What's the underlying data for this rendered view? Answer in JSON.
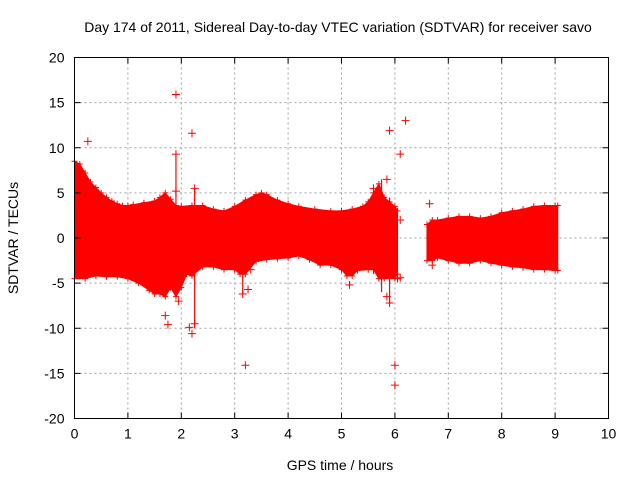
{
  "chart_data": {
    "type": "scatter",
    "title": "Day 174 of 2011, Sidereal Day-to-day VTEC variation (SDTVAR) for receiver savo",
    "xlabel": "GPS time / hours",
    "ylabel": "SDTVAR / TECUs",
    "xlim": [
      0,
      10
    ],
    "ylim": [
      -20,
      20
    ],
    "xticks": [
      0,
      1,
      2,
      3,
      4,
      5,
      6,
      7,
      8,
      9,
      10
    ],
    "yticks": [
      -20,
      -15,
      -10,
      -5,
      0,
      5,
      10,
      15,
      20
    ],
    "grid": true,
    "marker": "+",
    "color": "#ff0000",
    "series": [
      {
        "name": "SDTVAR",
        "band_upper": [
          [
            0.0,
            8.5
          ],
          [
            0.1,
            8.2
          ],
          [
            0.2,
            7.2
          ],
          [
            0.3,
            6.2
          ],
          [
            0.4,
            5.6
          ],
          [
            0.5,
            5.0
          ],
          [
            0.6,
            4.5
          ],
          [
            0.7,
            4.1
          ],
          [
            0.8,
            3.8
          ],
          [
            0.9,
            3.6
          ],
          [
            1.0,
            3.6
          ],
          [
            1.1,
            3.7
          ],
          [
            1.3,
            3.9
          ],
          [
            1.5,
            4.1
          ],
          [
            1.6,
            4.5
          ],
          [
            1.7,
            5.0
          ],
          [
            1.8,
            4.3
          ],
          [
            1.9,
            3.6
          ],
          [
            2.0,
            3.5
          ],
          [
            2.2,
            3.6
          ],
          [
            2.4,
            3.6
          ],
          [
            2.6,
            3.2
          ],
          [
            2.8,
            3.0
          ],
          [
            3.0,
            3.5
          ],
          [
            3.2,
            4.2
          ],
          [
            3.4,
            4.8
          ],
          [
            3.5,
            5.0
          ],
          [
            3.6,
            4.8
          ],
          [
            3.8,
            4.2
          ],
          [
            4.0,
            3.8
          ],
          [
            4.2,
            3.5
          ],
          [
            4.5,
            3.2
          ],
          [
            4.8,
            3.0
          ],
          [
            5.0,
            3.0
          ],
          [
            5.2,
            3.2
          ],
          [
            5.4,
            3.5
          ],
          [
            5.5,
            4.0
          ],
          [
            5.6,
            5.0
          ],
          [
            5.7,
            6.0
          ],
          [
            5.8,
            4.5
          ],
          [
            5.9,
            4.0
          ],
          [
            6.0,
            3.5
          ],
          [
            6.05,
            3.0
          ]
        ],
        "band_lower": [
          [
            0.0,
            -4.5
          ],
          [
            0.2,
            -4.5
          ],
          [
            0.4,
            -4.2
          ],
          [
            0.6,
            -4.3
          ],
          [
            0.8,
            -4.3
          ],
          [
            1.0,
            -4.5
          ],
          [
            1.2,
            -5.0
          ],
          [
            1.4,
            -5.8
          ],
          [
            1.5,
            -6.2
          ],
          [
            1.6,
            -6.2
          ],
          [
            1.7,
            -6.5
          ],
          [
            1.8,
            -5.5
          ],
          [
            1.9,
            -6.5
          ],
          [
            2.0,
            -5.5
          ],
          [
            2.1,
            -4.0
          ],
          [
            2.2,
            -4.2
          ],
          [
            2.4,
            -3.2
          ],
          [
            2.6,
            -3.2
          ],
          [
            2.8,
            -3.5
          ],
          [
            3.0,
            -3.5
          ],
          [
            3.1,
            -4.0
          ],
          [
            3.2,
            -4.0
          ],
          [
            3.4,
            -2.6
          ],
          [
            3.6,
            -2.4
          ],
          [
            3.8,
            -2.3
          ],
          [
            4.0,
            -2.2
          ],
          [
            4.2,
            -2.0
          ],
          [
            4.4,
            -2.4
          ],
          [
            4.6,
            -3.0
          ],
          [
            4.8,
            -3.0
          ],
          [
            5.0,
            -3.5
          ],
          [
            5.1,
            -4.2
          ],
          [
            5.2,
            -4.2
          ],
          [
            5.3,
            -3.6
          ],
          [
            5.5,
            -3.5
          ],
          [
            5.6,
            -3.5
          ],
          [
            5.7,
            -4.5
          ],
          [
            5.8,
            -4.5
          ],
          [
            5.9,
            -4.5
          ],
          [
            6.0,
            -4.5
          ],
          [
            6.05,
            -4.0
          ]
        ],
        "band2_upper": [
          [
            6.6,
            1.5
          ],
          [
            6.7,
            2.0
          ],
          [
            6.8,
            2.0
          ],
          [
            7.0,
            2.2
          ],
          [
            7.2,
            2.4
          ],
          [
            7.4,
            2.4
          ],
          [
            7.6,
            2.2
          ],
          [
            7.8,
            2.4
          ],
          [
            8.0,
            2.8
          ],
          [
            8.2,
            3.0
          ],
          [
            8.4,
            3.2
          ],
          [
            8.6,
            3.5
          ],
          [
            8.8,
            3.6
          ],
          [
            9.0,
            3.6
          ],
          [
            9.05,
            3.6
          ]
        ],
        "band2_lower": [
          [
            6.6,
            -2.5
          ],
          [
            6.7,
            -2.5
          ],
          [
            6.8,
            -2.2
          ],
          [
            7.0,
            -2.5
          ],
          [
            7.2,
            -2.8
          ],
          [
            7.4,
            -2.8
          ],
          [
            7.6,
            -2.5
          ],
          [
            7.8,
            -2.8
          ],
          [
            8.0,
            -3.0
          ],
          [
            8.2,
            -3.2
          ],
          [
            8.4,
            -3.3
          ],
          [
            8.6,
            -3.5
          ],
          [
            8.8,
            -3.5
          ],
          [
            9.0,
            -3.6
          ],
          [
            9.05,
            -3.6
          ]
        ],
        "outliers": [
          [
            0.25,
            10.7
          ],
          [
            1.9,
            15.9
          ],
          [
            1.9,
            9.3
          ],
          [
            2.2,
            11.6
          ],
          [
            1.9,
            5.2
          ],
          [
            2.25,
            5.5
          ],
          [
            2.15,
            -9.9
          ],
          [
            2.2,
            -10.6
          ],
          [
            2.25,
            -9.5
          ],
          [
            1.75,
            -9.6
          ],
          [
            1.7,
            -8.6
          ],
          [
            3.2,
            -14.1
          ],
          [
            3.15,
            -6.2
          ],
          [
            3.25,
            -5.7
          ],
          [
            3.3,
            -3.5
          ],
          [
            3.1,
            -3.5
          ],
          [
            3.0,
            -3.3
          ],
          [
            5.85,
            6.5
          ],
          [
            5.9,
            11.9
          ],
          [
            6.1,
            9.3
          ],
          [
            6.2,
            13.0
          ],
          [
            6.0,
            -14.1
          ],
          [
            6.0,
            -16.3
          ],
          [
            6.1,
            2.0
          ],
          [
            5.9,
            -7.2
          ],
          [
            5.85,
            -6.5
          ],
          [
            5.15,
            -5.2
          ],
          [
            5.6,
            5.5
          ],
          [
            6.65,
            3.8
          ],
          [
            6.7,
            -3.0
          ],
          [
            6.05,
            -4.5
          ],
          [
            6.1,
            -4.4
          ],
          [
            1.95,
            -7.0
          ]
        ],
        "spikes": [
          [
            1.9,
            -5.0,
            9.3
          ],
          [
            2.25,
            -10.0,
            5.5
          ],
          [
            5.75,
            -6.0,
            6.5
          ],
          [
            5.9,
            -7.3,
            4.5
          ],
          [
            5.6,
            -4.0,
            5.3
          ],
          [
            3.15,
            -6.2,
            -3.0
          ]
        ]
      }
    ]
  }
}
